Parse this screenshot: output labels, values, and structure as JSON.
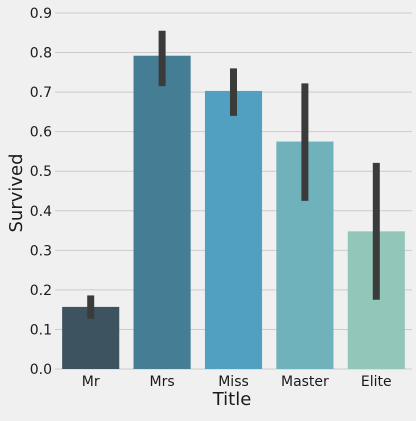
{
  "chart_data": {
    "type": "bar",
    "title": "",
    "xlabel": "Title",
    "ylabel": "Survived",
    "categories": [
      "Mr",
      "Mrs",
      "Miss",
      "Master",
      "Elite"
    ],
    "values": [
      0.157,
      0.792,
      0.703,
      0.575,
      0.348
    ],
    "error_bars": [
      [
        0.127,
        0.186
      ],
      [
        0.715,
        0.855
      ],
      [
        0.64,
        0.76
      ],
      [
        0.425,
        0.722
      ],
      [
        0.175,
        0.521
      ]
    ],
    "ylim": [
      0,
      0.9
    ],
    "yticks": [
      "0.0",
      "0.1",
      "0.2",
      "0.3",
      "0.4",
      "0.5",
      "0.6",
      "0.7",
      "0.8",
      "0.9"
    ],
    "grid": "horizontal",
    "legend": "none",
    "colors": [
      "#3d535f",
      "#457e94",
      "#52a0c1",
      "#70b2bb",
      "#92c6b8"
    ],
    "errorbar_color": "#3b3b3b",
    "background": "#f0f0f0",
    "grid_color": "#cbcbcb"
  }
}
